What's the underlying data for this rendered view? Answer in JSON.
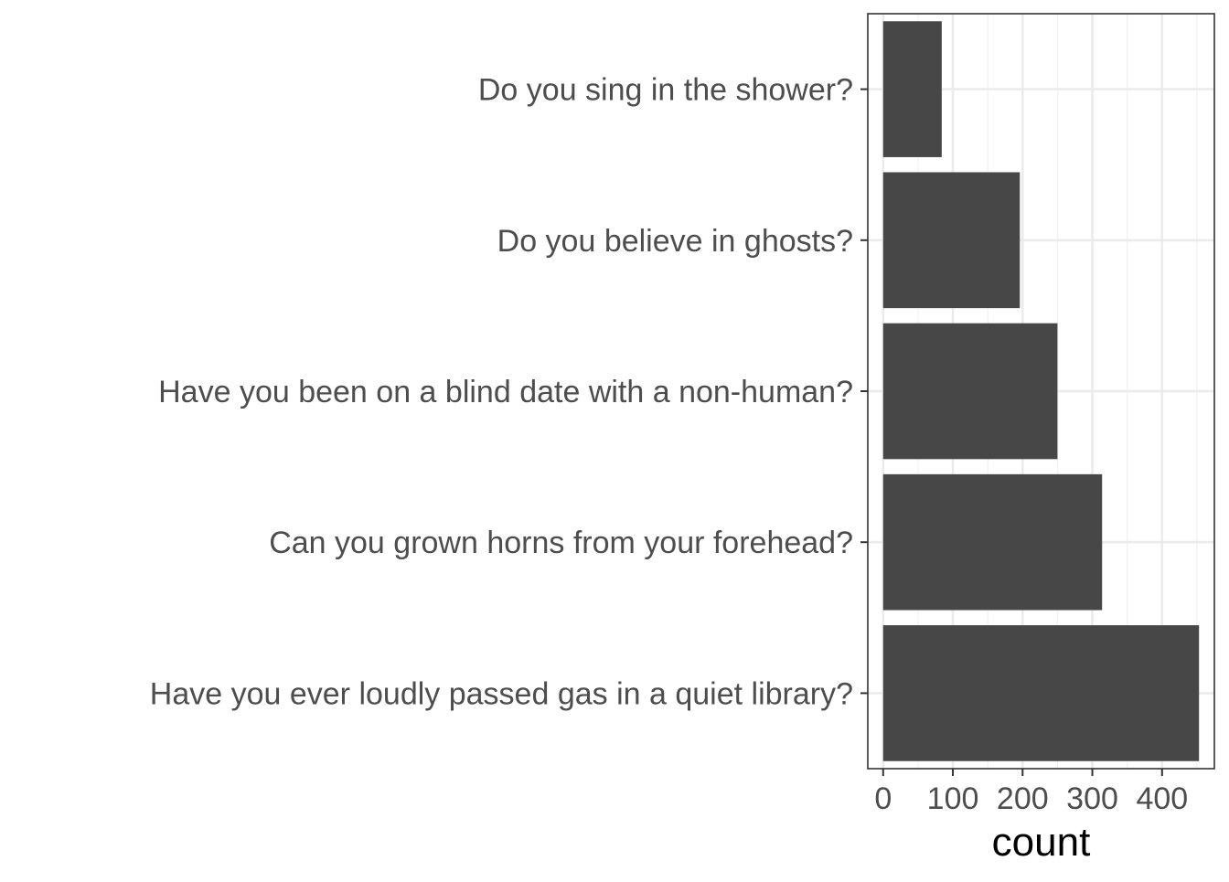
{
  "chart_data": {
    "type": "bar",
    "orientation": "horizontal",
    "categories": [
      "Do you sing in the shower?",
      "Do you believe in ghosts?",
      "Have you been on a blind date with a non-human?",
      "Can you grown horns from your forehead?",
      "Have you ever loudly passed gas in a quiet library?"
    ],
    "values": [
      84,
      196,
      250,
      314,
      453
    ],
    "xlabel": "count",
    "ylabel": "",
    "title": "",
    "xlim": [
      -22,
      475
    ],
    "x_ticks": [
      0,
      100,
      200,
      300,
      400
    ],
    "x_tick_labels": [
      "0",
      "100",
      "200",
      "300",
      "400"
    ],
    "grid": true,
    "theme": "bw",
    "colors": {
      "bar": "#474747",
      "panel_border": "#333333",
      "grid_major": "#ebebeb",
      "grid_minor": "#f2f2f2",
      "tick_text": "#4d4d4d",
      "axis_title": "#000000"
    }
  }
}
